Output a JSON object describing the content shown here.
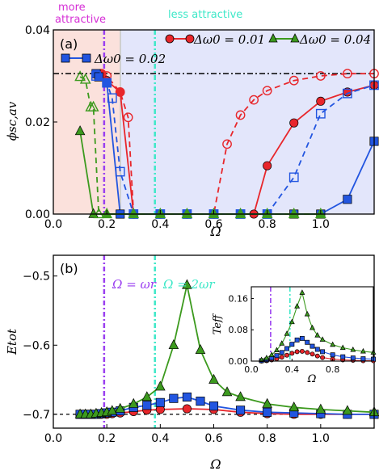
{
  "annotations": {
    "more_attractive": "more attractive",
    "less_attractive": "less attractive",
    "omega_wr": "Ω = ωr",
    "omega_2wr": "Ω = 2ωr"
  },
  "colors": {
    "red": "#e8262b",
    "green": "#3c9a1e",
    "blue": "#2255e0",
    "purple": "#9a3ff0",
    "cyan": "#3ee8c8",
    "magenta": "#d62ed6",
    "pink_bg": "#fbe1dc",
    "blue_bg": "#e3e6fb"
  },
  "chart_data": [
    {
      "type": "line",
      "panel_label": "(a)",
      "xlabel": "Ω",
      "ylabel": "ϕsc,av",
      "xlim": [
        0.0,
        1.2
      ],
      "ylim": [
        0.0,
        0.04
      ],
      "xticks": [
        "0.0",
        "0.2",
        "0.4",
        "0.6",
        "0.8",
        "1.0"
      ],
      "yticks": [
        "0.00",
        "0.02",
        "0.04"
      ],
      "hline": 0.0305,
      "vlines": [
        0.19,
        0.38
      ],
      "shaded_regions": [
        {
          "from": 0.0,
          "to": 0.22,
          "label": "more attractive"
        },
        {
          "from": 0.22,
          "to": 1.2,
          "label": "less attractive"
        }
      ],
      "legend": [
        "Δω0 = 0.01",
        "Δω0 = 0.04",
        "Δω0 = 0.02"
      ],
      "legend_position": "top-right",
      "series": [
        {
          "name": "Δω0 = 0.01",
          "color": "red",
          "marker": "circle",
          "filled": true,
          "dash": false,
          "x": [
            0.18,
            0.2,
            0.25,
            0.3,
            0.4,
            0.5,
            0.6,
            0.7,
            0.75,
            0.8,
            0.9,
            1.0,
            1.1,
            1.2
          ],
          "y": [
            0.0305,
            0.029,
            0.0265,
            0.0,
            0.0,
            0.0,
            0.0,
            0.0,
            0.0,
            0.0105,
            0.0198,
            0.0245,
            0.0265,
            0.028
          ]
        },
        {
          "name": "Δω0 = 0.01",
          "color": "red",
          "marker": "circle",
          "filled": false,
          "dash": true,
          "x": [
            0.18,
            0.2,
            0.25,
            0.28,
            0.3,
            0.4,
            0.5,
            0.6,
            0.65,
            0.7,
            0.75,
            0.8,
            0.9,
            1.0,
            1.1,
            1.2
          ],
          "y": [
            0.0305,
            0.03,
            0.0265,
            0.021,
            0.0,
            0.0,
            0.0,
            0.0,
            0.0152,
            0.0215,
            0.0248,
            0.0268,
            0.029,
            0.03,
            0.0305,
            0.0305
          ]
        },
        {
          "name": "Δω0 = 0.02",
          "color": "blue",
          "marker": "square",
          "filled": true,
          "dash": false,
          "x": [
            0.16,
            0.17,
            0.2,
            0.25,
            0.3,
            0.4,
            0.5,
            0.6,
            0.7,
            0.8,
            0.9,
            1.0,
            1.1,
            1.2
          ],
          "y": [
            0.0305,
            0.0298,
            0.0285,
            0.0,
            0.0,
            0.0,
            0.0,
            0.0,
            0.0,
            0.0,
            0.0,
            0.0,
            0.0032,
            0.0158
          ]
        },
        {
          "name": "Δω0 = 0.02",
          "color": "blue",
          "marker": "square",
          "filled": false,
          "dash": true,
          "x": [
            0.16,
            0.2,
            0.22,
            0.25,
            0.3,
            0.4,
            0.5,
            0.6,
            0.7,
            0.8,
            0.9,
            1.0,
            1.1,
            1.2
          ],
          "y": [
            0.03,
            0.0285,
            0.0252,
            0.0092,
            0.0,
            0.0,
            0.0,
            0.0,
            0.0,
            0.0,
            0.008,
            0.0218,
            0.0262,
            0.028
          ]
        },
        {
          "name": "Δω0 = 0.04",
          "color": "green",
          "marker": "triangle",
          "filled": true,
          "dash": false,
          "x": [
            0.1,
            0.15,
            0.2,
            0.3,
            0.4,
            0.5,
            0.6,
            0.7,
            0.8,
            0.9,
            1.0
          ],
          "y": [
            0.018,
            0.0,
            0.0,
            0.0,
            0.0,
            0.0,
            0.0,
            0.0,
            0.0,
            0.0,
            0.0
          ]
        },
        {
          "name": "Δω0 = 0.04",
          "color": "green",
          "marker": "triangle",
          "filled": false,
          "dash": true,
          "x": [
            0.1,
            0.12,
            0.14,
            0.15,
            0.17,
            0.2,
            0.3,
            0.4,
            0.5,
            0.6,
            0.7,
            0.8,
            0.9,
            1.0
          ],
          "y": [
            0.0298,
            0.0292,
            0.0232,
            0.0232,
            0.0,
            0.0,
            0.0,
            0.0,
            0.0,
            0.0,
            0.0,
            0.0,
            0.0,
            0.0
          ]
        }
      ]
    },
    {
      "type": "line",
      "panel_label": "(b)",
      "xlabel": "Ω",
      "ylabel": "Etot",
      "xlim": [
        0.0,
        1.2
      ],
      "ylim": [
        -0.72,
        -0.47
      ],
      "xticks": [
        "0.0",
        "0.2",
        "0.4",
        "0.6",
        "0.8",
        "1.0"
      ],
      "yticks": [
        "−0.7",
        "−0.6",
        "−0.5"
      ],
      "hline": -0.7,
      "vlines": [
        0.19,
        0.38
      ],
      "series": [
        {
          "color": "red",
          "marker": "circle",
          "x": [
            0.1,
            0.12,
            0.14,
            0.16,
            0.18,
            0.2,
            0.22,
            0.25,
            0.3,
            0.35,
            0.4,
            0.5,
            0.6,
            0.7,
            0.8,
            0.9,
            1.0,
            1.1,
            1.2
          ],
          "y": [
            -0.7,
            -0.7,
            -0.7,
            -0.7,
            -0.7,
            -0.7,
            -0.699,
            -0.698,
            -0.696,
            -0.694,
            -0.693,
            -0.692,
            -0.693,
            -0.697,
            -0.699,
            -0.7,
            -0.7,
            -0.7,
            -0.7
          ]
        },
        {
          "color": "blue",
          "marker": "square",
          "x": [
            0.1,
            0.12,
            0.14,
            0.16,
            0.18,
            0.2,
            0.22,
            0.25,
            0.3,
            0.35,
            0.4,
            0.45,
            0.5,
            0.55,
            0.6,
            0.7,
            0.8,
            0.9,
            1.0,
            1.1,
            1.2
          ],
          "y": [
            -0.7,
            -0.7,
            -0.7,
            -0.7,
            -0.699,
            -0.698,
            -0.697,
            -0.695,
            -0.69,
            -0.687,
            -0.683,
            -0.677,
            -0.675,
            -0.681,
            -0.688,
            -0.694,
            -0.697,
            -0.698,
            -0.699,
            -0.7,
            -0.7
          ]
        },
        {
          "color": "green",
          "marker": "triangle",
          "x": [
            0.1,
            0.12,
            0.14,
            0.16,
            0.18,
            0.2,
            0.22,
            0.25,
            0.3,
            0.35,
            0.4,
            0.45,
            0.5,
            0.55,
            0.6,
            0.65,
            0.7,
            0.8,
            0.9,
            1.0,
            1.1,
            1.2
          ],
          "y": [
            -0.7,
            -0.7,
            -0.7,
            -0.699,
            -0.698,
            -0.697,
            -0.695,
            -0.692,
            -0.685,
            -0.675,
            -0.66,
            -0.6,
            -0.513,
            -0.607,
            -0.65,
            -0.668,
            -0.675,
            -0.685,
            -0.69,
            -0.693,
            -0.695,
            -0.697
          ]
        }
      ]
    },
    {
      "type": "line",
      "panel_label": "inset",
      "xlabel": "Ω",
      "ylabel": "Teff",
      "xlim": [
        0.0,
        1.2
      ],
      "ylim": [
        0.0,
        0.19
      ],
      "xticks": [
        "0.0",
        "0.4",
        "0.8"
      ],
      "yticks": [
        "0.00",
        "0.08",
        "0.16"
      ],
      "vlines": [
        0.19,
        0.38
      ],
      "series": [
        {
          "color": "red",
          "marker": "circle",
          "x": [
            0.1,
            0.15,
            0.2,
            0.25,
            0.3,
            0.35,
            0.4,
            0.45,
            0.5,
            0.55,
            0.6,
            0.65,
            0.7,
            0.8,
            0.9,
            1.0,
            1.1,
            1.2
          ],
          "y": [
            0.0,
            0.001,
            0.003,
            0.006,
            0.01,
            0.015,
            0.02,
            0.024,
            0.025,
            0.022,
            0.018,
            0.013,
            0.009,
            0.005,
            0.003,
            0.002,
            0.001,
            0.001
          ]
        },
        {
          "color": "blue",
          "marker": "square",
          "x": [
            0.1,
            0.15,
            0.2,
            0.25,
            0.3,
            0.35,
            0.4,
            0.45,
            0.5,
            0.55,
            0.6,
            0.65,
            0.7,
            0.8,
            0.9,
            1.0,
            1.1,
            1.2
          ],
          "y": [
            0.001,
            0.003,
            0.008,
            0.014,
            0.022,
            0.032,
            0.043,
            0.054,
            0.058,
            0.048,
            0.038,
            0.03,
            0.024,
            0.016,
            0.011,
            0.008,
            0.006,
            0.005
          ]
        },
        {
          "color": "green",
          "marker": "triangle",
          "x": [
            0.1,
            0.15,
            0.2,
            0.25,
            0.3,
            0.35,
            0.4,
            0.45,
            0.5,
            0.55,
            0.6,
            0.65,
            0.7,
            0.8,
            0.9,
            1.0,
            1.1,
            1.2
          ],
          "y": [
            0.003,
            0.008,
            0.016,
            0.028,
            0.045,
            0.07,
            0.1,
            0.14,
            0.175,
            0.12,
            0.085,
            0.066,
            0.055,
            0.042,
            0.034,
            0.029,
            0.025,
            0.022
          ]
        }
      ]
    }
  ]
}
